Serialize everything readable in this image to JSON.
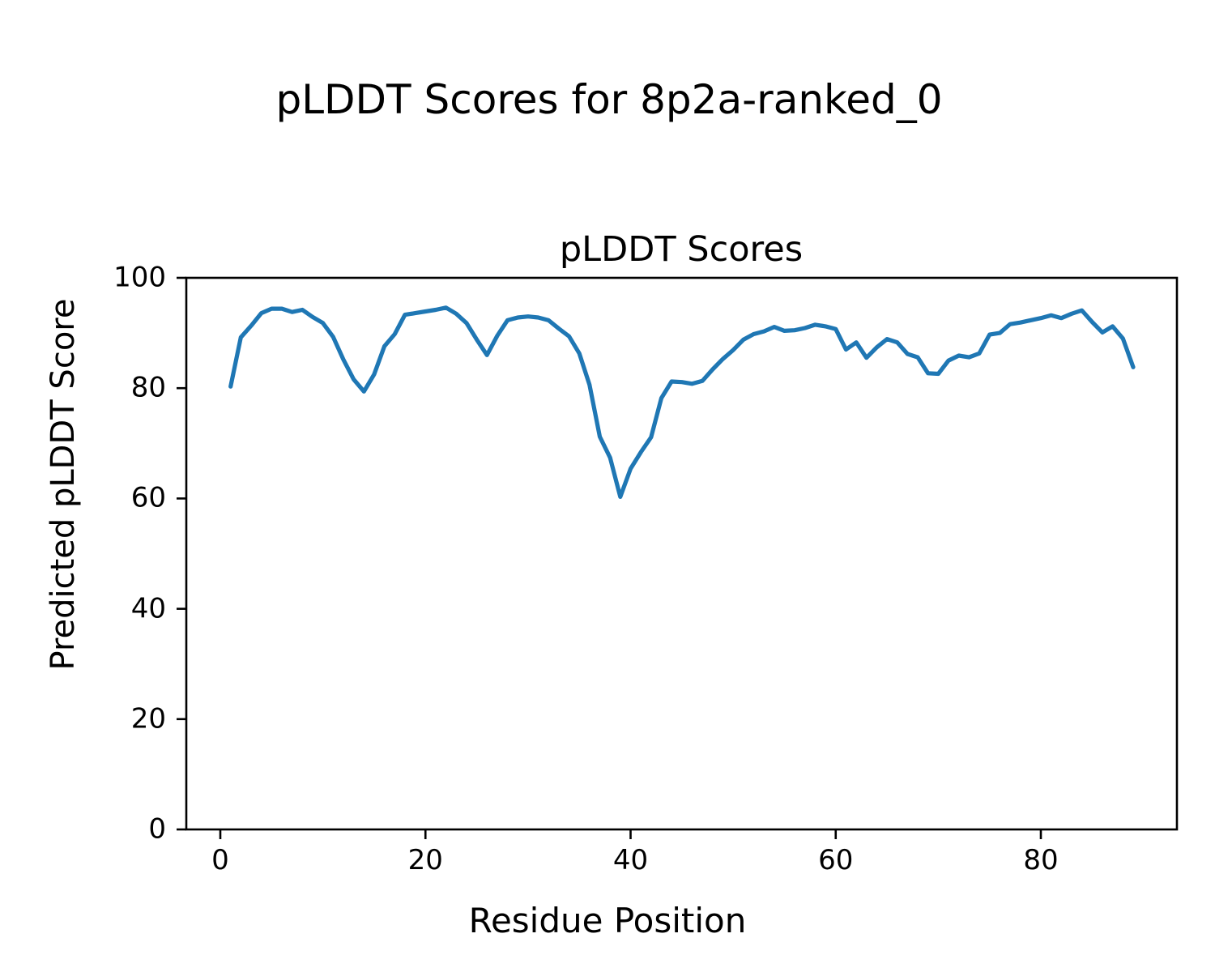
{
  "figure": {
    "suptitle": "pLDDT Scores for 8p2a-ranked_0"
  },
  "chart_data": {
    "type": "line",
    "title": "pLDDT Scores",
    "xlabel": "Residue Position",
    "ylabel": "Predicted pLDDT Score",
    "xticks": [
      0,
      20,
      40,
      60,
      80
    ],
    "yticks": [
      0,
      20,
      40,
      60,
      80,
      100
    ],
    "xlim": [
      -3.4,
      93.4
    ],
    "ylim": [
      0,
      100
    ],
    "grid": false,
    "legend": null,
    "line_color": "#1f77b4",
    "series": [
      {
        "name": "pLDDT",
        "x": [
          1,
          2,
          3,
          4,
          5,
          6,
          7,
          8,
          9,
          10,
          11,
          12,
          13,
          14,
          15,
          16,
          17,
          18,
          19,
          20,
          21,
          22,
          23,
          24,
          25,
          26,
          27,
          28,
          29,
          30,
          31,
          32,
          33,
          34,
          35,
          36,
          37,
          38,
          39,
          40,
          41,
          42,
          43,
          44,
          45,
          46,
          47,
          48,
          49,
          50,
          51,
          52,
          53,
          54,
          55,
          56,
          57,
          58,
          59,
          60,
          61,
          62,
          63,
          64,
          65,
          66,
          67,
          68,
          69,
          70,
          71,
          72,
          73,
          74,
          75,
          76,
          77,
          78,
          79,
          80,
          81,
          82,
          83,
          84,
          85,
          86,
          87,
          88,
          89
        ],
        "values": [
          80.3,
          89.2,
          91.3,
          93.6,
          94.4,
          94.4,
          93.8,
          94.2,
          92.9,
          91.8,
          89.3,
          85.2,
          81.6,
          79.4,
          82.5,
          87.6,
          89.8,
          93.3,
          93.6,
          93.9,
          94.2,
          94.6,
          93.5,
          91.8,
          88.8,
          86.0,
          89.5,
          92.3,
          92.8,
          93.0,
          92.8,
          92.3,
          90.8,
          89.4,
          86.3,
          80.6,
          71.2,
          67.4,
          60.3,
          65.4,
          68.4,
          71.1,
          78.2,
          81.2,
          81.1,
          80.8,
          81.3,
          83.4,
          85.3,
          86.9,
          88.8,
          89.8,
          90.3,
          91.1,
          90.4,
          90.5,
          90.9,
          91.5,
          91.2,
          90.7,
          87.0,
          88.3,
          85.5,
          87.4,
          88.9,
          88.3,
          86.2,
          85.6,
          82.7,
          82.6,
          85.0,
          85.9,
          85.6,
          86.3,
          89.7,
          90.0,
          91.6,
          91.9,
          92.3,
          92.7,
          93.2,
          92.7,
          93.5,
          94.1,
          92.0,
          90.1,
          91.2,
          89.0,
          83.8
        ]
      }
    ]
  }
}
